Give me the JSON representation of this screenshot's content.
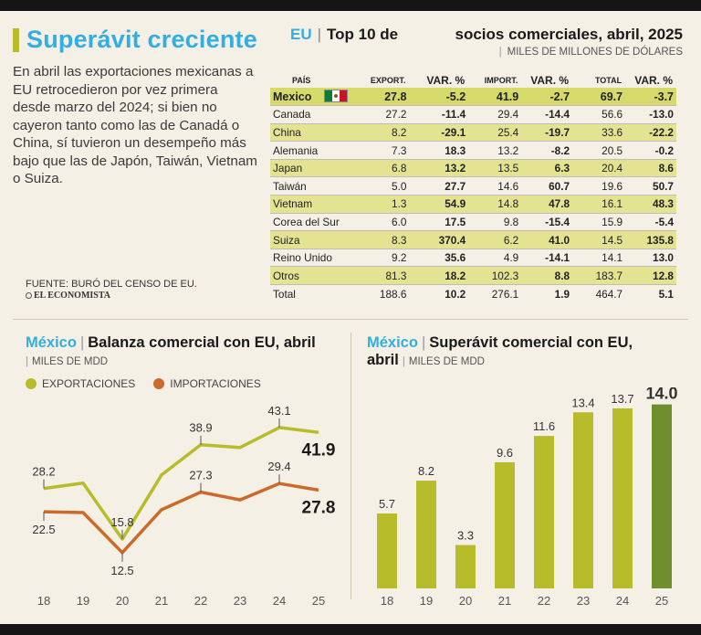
{
  "header": {
    "title": "Superávit creciente",
    "intro": "En abril las exportaciones mexicanas a EU retrocedieron por vez primera desde marzo del 2024; si bien no cayeron tanto como las de Canadá o China, sí tuvieron un desempeño más bajo que las de Japón, Taiwán, Vietnam o Suiza.",
    "source": "FUENTE: BURÓ DEL CENSO DE EU.",
    "brand": "EL ECONOMISTA"
  },
  "table": {
    "title_country": "EU",
    "title_a": "Top 10 de",
    "title_b": "socios comerciales, abril, 2025",
    "unit": "MILES DE MILLONES DE DÓLARES",
    "columns": [
      "PAÍS",
      "EXPORT.",
      "VAR. %",
      "IMPORT.",
      "VAR. %",
      "TOTAL",
      "VAR. %"
    ],
    "rows": [
      {
        "name": "Mexico",
        "export": "27.8",
        "export_var": "-5.2",
        "import": "41.9",
        "import_var": "-2.7",
        "total": "69.7",
        "total_var": "-3.7"
      },
      {
        "name": "Canada",
        "export": "27.2",
        "export_var": "-11.4",
        "import": "29.4",
        "import_var": "-14.4",
        "total": "56.6",
        "total_var": "-13.0"
      },
      {
        "name": "China",
        "export": "8.2",
        "export_var": "-29.1",
        "import": "25.4",
        "import_var": "-19.7",
        "total": "33.6",
        "total_var": "-22.2"
      },
      {
        "name": "Alemania",
        "export": "7.3",
        "export_var": "18.3",
        "import": "13.2",
        "import_var": "-8.2",
        "total": "20.5",
        "total_var": "-0.2"
      },
      {
        "name": "Japan",
        "export": "6.8",
        "export_var": "13.2",
        "import": "13.5",
        "import_var": "6.3",
        "total": "20.4",
        "total_var": "8.6"
      },
      {
        "name": "Taiwán",
        "export": "5.0",
        "export_var": "27.7",
        "import": "14.6",
        "import_var": "60.7",
        "total": "19.6",
        "total_var": "50.7"
      },
      {
        "name": "Vietnam",
        "export": "1.3",
        "export_var": "54.9",
        "import": "14.8",
        "import_var": "47.8",
        "total": "16.1",
        "total_var": "48.3"
      },
      {
        "name": "Corea del Sur",
        "export": "6.0",
        "export_var": "17.5",
        "import": "9.8",
        "import_var": "-15.4",
        "total": "15.9",
        "total_var": "-5.4"
      },
      {
        "name": "Suiza",
        "export": "8.3",
        "export_var": "370.4",
        "import": "6.2",
        "import_var": "41.0",
        "total": "14.5",
        "total_var": "135.8"
      },
      {
        "name": "Reino Unido",
        "export": "9.2",
        "export_var": "35.6",
        "import": "4.9",
        "import_var": "-14.1",
        "total": "14.1",
        "total_var": "13.0"
      },
      {
        "name": "Otros",
        "export": "81.3",
        "export_var": "18.2",
        "import": "102.3",
        "import_var": "8.8",
        "total": "183.7",
        "total_var": "12.8"
      },
      {
        "name": "Total",
        "export": "188.6",
        "export_var": "10.2",
        "import": "276.1",
        "import_var": "1.9",
        "total": "464.7",
        "total_var": "5.1"
      }
    ]
  },
  "chart1_head": {
    "country": "México",
    "title": "Balanza comercial con EU, abril",
    "unit": "MILES DE MDD"
  },
  "chart2_head": {
    "country": "México",
    "title_line1": "Superávit comercial con EU,",
    "title_line2": "abril",
    "unit": "MILES DE MDD"
  },
  "colors": {
    "export": "#b7bd2a",
    "import": "#cc6a2a",
    "bar": "#b7bd2a",
    "bar_highlight": "#6f8f2f",
    "accent": "#33aee0"
  },
  "chart_data": [
    {
      "type": "line",
      "x": [
        "18",
        "19",
        "20",
        "21",
        "22",
        "23",
        "24",
        "25"
      ],
      "series": [
        {
          "name": "EXPORTACIONES",
          "values": [
            28.2,
            29.5,
            15.8,
            31.5,
            38.9,
            38.2,
            43.1,
            41.9
          ],
          "labels": [
            "28.2",
            "",
            "15.8",
            "",
            "38.9",
            "",
            "43.1",
            "41.9"
          ]
        },
        {
          "name": "IMPORTACIONES",
          "values": [
            22.5,
            22.3,
            12.5,
            23.0,
            27.3,
            25.4,
            29.4,
            27.8
          ],
          "labels": [
            "22.5",
            "",
            "12.5",
            "",
            "27.3",
            "",
            "29.4",
            "27.8"
          ]
        }
      ],
      "ylim": [
        10,
        48
      ]
    },
    {
      "type": "bar",
      "categories": [
        "18",
        "19",
        "20",
        "21",
        "22",
        "23",
        "24",
        "25"
      ],
      "values": [
        5.7,
        8.2,
        3.3,
        9.6,
        11.6,
        13.4,
        13.7,
        14.0
      ],
      "labels": [
        "5.7",
        "8.2",
        "3.3",
        "9.6",
        "11.6",
        "13.4",
        "13.7",
        "14.0"
      ],
      "ylim": [
        0,
        14.6
      ]
    }
  ]
}
